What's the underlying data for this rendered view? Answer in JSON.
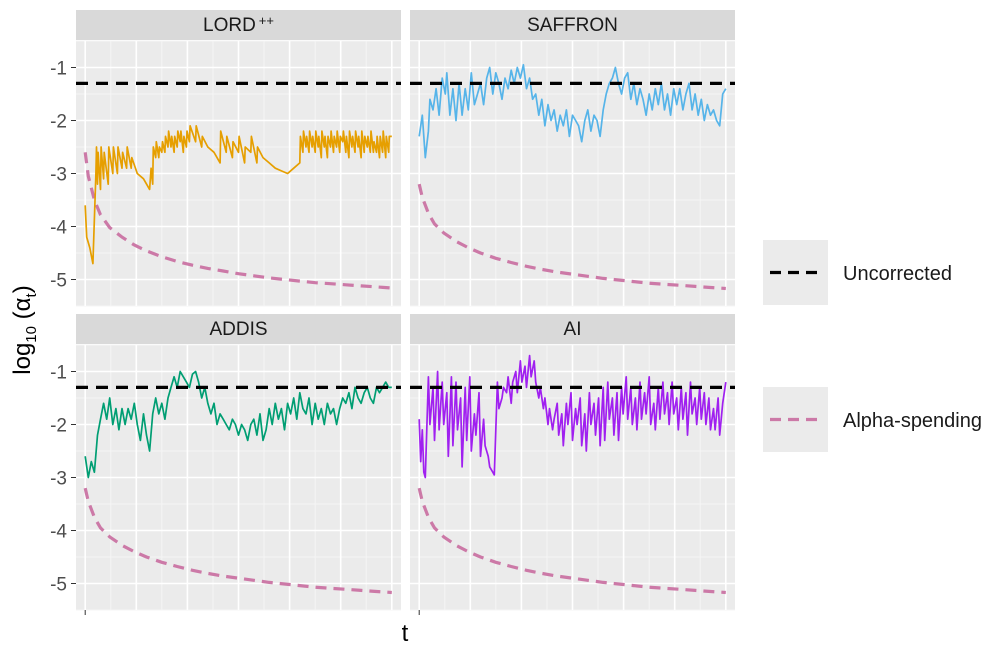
{
  "chart_data": {
    "type": "line",
    "xlabel": "t",
    "ylabel": "log10 (αt)",
    "ylabel_parts": {
      "base": "log",
      "sub": "10",
      "paren_open": " (α",
      "alpha_sub": "t",
      "paren_close": ")"
    },
    "ylim": [
      -5.5,
      -0.5
    ],
    "xlim": [
      -0.03,
      1.03
    ],
    "yticks": [
      {
        "value": -1,
        "label": "-1"
      },
      {
        "value": -2,
        "label": "-2"
      },
      {
        "value": -3,
        "label": "-3"
      },
      {
        "value": -4,
        "label": "-4"
      },
      {
        "value": -5,
        "label": "-5"
      }
    ],
    "grid": true,
    "legend_position": "right",
    "legend": [
      {
        "label": "Uncorrected",
        "color": "#000000",
        "style": "dashed"
      },
      {
        "label": "Alpha-spending",
        "color": "#CC79A7",
        "style": "dashed"
      }
    ],
    "reference_lines": [
      {
        "name": "Uncorrected",
        "y": -1.3,
        "color": "#000000"
      }
    ],
    "alpha_spending": {
      "color": "#CC79A7",
      "x": [
        0.0,
        0.01,
        0.03,
        0.05,
        0.08,
        0.12,
        0.16,
        0.2,
        0.25,
        0.3,
        0.35,
        0.4,
        0.45,
        0.5,
        0.55,
        0.6,
        0.65,
        0.7,
        0.75,
        0.8,
        0.85,
        0.9,
        0.95,
        1.0
      ],
      "y_by_panel": [
        [
          -2.6,
          -3.05,
          -3.5,
          -3.78,
          -4.02,
          -4.2,
          -4.35,
          -4.46,
          -4.57,
          -4.66,
          -4.73,
          -4.79,
          -4.84,
          -4.89,
          -4.93,
          -4.97,
          -5.0,
          -5.03,
          -5.06,
          -5.08,
          -5.1,
          -5.12,
          -5.14,
          -5.16
        ],
        [
          -3.2,
          -3.45,
          -3.75,
          -3.95,
          -4.12,
          -4.28,
          -4.4,
          -4.5,
          -4.6,
          -4.68,
          -4.75,
          -4.81,
          -4.86,
          -4.9,
          -4.94,
          -4.98,
          -5.01,
          -5.04,
          -5.07,
          -5.09,
          -5.11,
          -5.13,
          -5.15,
          -5.17
        ],
        [
          -3.2,
          -3.45,
          -3.75,
          -3.95,
          -4.12,
          -4.28,
          -4.4,
          -4.5,
          -4.6,
          -4.68,
          -4.75,
          -4.81,
          -4.86,
          -4.9,
          -4.94,
          -4.98,
          -5.01,
          -5.04,
          -5.07,
          -5.09,
          -5.11,
          -5.13,
          -5.15,
          -5.17
        ],
        [
          -3.2,
          -3.45,
          -3.75,
          -3.95,
          -4.12,
          -4.28,
          -4.4,
          -4.5,
          -4.6,
          -4.68,
          -4.75,
          -4.81,
          -4.86,
          -4.9,
          -4.94,
          -4.98,
          -5.01,
          -5.04,
          -5.07,
          -5.09,
          -5.11,
          -5.13,
          -5.15,
          -5.17
        ]
      ]
    },
    "panels": [
      {
        "title": "LORD",
        "title_superscript": "++",
        "color": "#E69F00",
        "x": [
          0.0,
          0.005,
          0.015,
          0.025,
          0.035,
          0.037,
          0.04,
          0.042,
          0.05,
          0.052,
          0.06,
          0.062,
          0.075,
          0.077,
          0.09,
          0.092,
          0.105,
          0.107,
          0.12,
          0.122,
          0.135,
          0.137,
          0.15,
          0.152,
          0.17,
          0.19,
          0.21,
          0.215,
          0.22,
          0.222,
          0.23,
          0.232,
          0.24,
          0.242,
          0.25,
          0.252,
          0.26,
          0.262,
          0.27,
          0.272,
          0.28,
          0.282,
          0.29,
          0.292,
          0.3,
          0.302,
          0.31,
          0.312,
          0.32,
          0.322,
          0.33,
          0.332,
          0.34,
          0.342,
          0.36,
          0.362,
          0.38,
          0.382,
          0.4,
          0.42,
          0.44,
          0.442,
          0.46,
          0.462,
          0.48,
          0.482,
          0.5,
          0.502,
          0.52,
          0.522,
          0.54,
          0.542,
          0.56,
          0.562,
          0.58,
          0.6,
          0.62,
          0.64,
          0.66,
          0.68,
          0.7,
          0.702,
          0.71,
          0.712,
          0.72,
          0.722,
          0.73,
          0.732,
          0.74,
          0.742,
          0.75,
          0.752,
          0.76,
          0.762,
          0.77,
          0.772,
          0.78,
          0.782,
          0.79,
          0.792,
          0.8,
          0.802,
          0.81,
          0.812,
          0.82,
          0.822,
          0.83,
          0.832,
          0.84,
          0.842,
          0.85,
          0.852,
          0.86,
          0.862,
          0.87,
          0.872,
          0.88,
          0.882,
          0.89,
          0.892,
          0.9,
          0.902,
          0.91,
          0.912,
          0.92,
          0.922,
          0.93,
          0.932,
          0.94,
          0.942,
          0.95,
          0.952,
          0.96,
          0.962,
          0.97,
          0.972,
          0.98,
          0.982,
          0.99,
          0.992,
          1.0
        ],
        "y": [
          -3.6,
          -4.2,
          -4.4,
          -4.7,
          -3.0,
          -2.5,
          -3.2,
          -2.6,
          -3.3,
          -2.5,
          -3.1,
          -2.6,
          -3.2,
          -2.5,
          -3.0,
          -2.5,
          -3.0,
          -2.5,
          -2.9,
          -2.6,
          -2.9,
          -2.5,
          -2.9,
          -2.7,
          -3.0,
          -3.1,
          -3.3,
          -2.9,
          -3.2,
          -2.5,
          -2.7,
          -2.4,
          -2.7,
          -2.5,
          -2.6,
          -2.4,
          -2.6,
          -2.3,
          -2.5,
          -2.2,
          -2.5,
          -2.3,
          -2.6,
          -2.3,
          -2.5,
          -2.2,
          -2.4,
          -2.2,
          -2.6,
          -2.3,
          -2.5,
          -2.2,
          -2.4,
          -2.1,
          -2.4,
          -2.1,
          -2.5,
          -2.3,
          -2.5,
          -2.6,
          -2.8,
          -2.2,
          -2.6,
          -2.3,
          -2.7,
          -2.4,
          -2.6,
          -2.3,
          -2.8,
          -2.5,
          -2.6,
          -2.3,
          -2.8,
          -2.5,
          -2.7,
          -2.8,
          -2.9,
          -2.95,
          -3.0,
          -2.9,
          -2.8,
          -2.3,
          -2.6,
          -2.2,
          -2.5,
          -2.3,
          -2.6,
          -2.2,
          -2.5,
          -2.3,
          -2.6,
          -2.2,
          -2.5,
          -2.3,
          -2.7,
          -2.2,
          -2.5,
          -2.3,
          -2.7,
          -2.3,
          -2.5,
          -2.2,
          -2.6,
          -2.3,
          -2.5,
          -2.2,
          -2.6,
          -2.3,
          -2.4,
          -2.2,
          -2.6,
          -2.3,
          -2.7,
          -2.2,
          -2.5,
          -2.3,
          -2.6,
          -2.2,
          -2.5,
          -2.3,
          -2.7,
          -2.2,
          -2.6,
          -2.3,
          -2.5,
          -2.3,
          -2.6,
          -2.2,
          -2.6,
          -2.4,
          -2.6,
          -2.3,
          -2.7,
          -2.3,
          -2.6,
          -2.2,
          -2.7,
          -2.3,
          -2.6,
          -2.3,
          -2.3
        ]
      },
      {
        "title": "SAFFRON",
        "color": "#56B4E9",
        "x": [
          0.0,
          0.01,
          0.02,
          0.03,
          0.035,
          0.045,
          0.055,
          0.065,
          0.075,
          0.085,
          0.09,
          0.1,
          0.11,
          0.12,
          0.13,
          0.14,
          0.15,
          0.16,
          0.17,
          0.18,
          0.19,
          0.2,
          0.21,
          0.22,
          0.23,
          0.24,
          0.25,
          0.26,
          0.27,
          0.28,
          0.29,
          0.3,
          0.31,
          0.32,
          0.33,
          0.34,
          0.35,
          0.36,
          0.37,
          0.38,
          0.39,
          0.4,
          0.41,
          0.42,
          0.43,
          0.44,
          0.45,
          0.46,
          0.47,
          0.48,
          0.49,
          0.5,
          0.51,
          0.52,
          0.53,
          0.54,
          0.55,
          0.56,
          0.57,
          0.58,
          0.59,
          0.6,
          0.61,
          0.62,
          0.63,
          0.64,
          0.65,
          0.66,
          0.67,
          0.68,
          0.69,
          0.7,
          0.71,
          0.72,
          0.73,
          0.74,
          0.75,
          0.76,
          0.77,
          0.78,
          0.79,
          0.8,
          0.81,
          0.82,
          0.83,
          0.84,
          0.85,
          0.86,
          0.87,
          0.88,
          0.89,
          0.9,
          0.91,
          0.92,
          0.93,
          0.94,
          0.95,
          0.96,
          0.97,
          0.98,
          0.99,
          1.0
        ],
        "y": [
          -2.3,
          -1.9,
          -2.7,
          -2.2,
          -1.6,
          -1.8,
          -1.4,
          -1.9,
          -1.2,
          -1.5,
          -1.1,
          -1.9,
          -1.4,
          -2.0,
          -1.3,
          -1.9,
          -1.4,
          -1.8,
          -1.1,
          -1.7,
          -1.5,
          -1.3,
          -1.7,
          -1.2,
          -1.0,
          -1.5,
          -1.1,
          -1.3,
          -1.6,
          -1.2,
          -1.4,
          -1.05,
          -1.3,
          -1.0,
          -1.2,
          -0.95,
          -1.4,
          -1.2,
          -1.6,
          -1.5,
          -1.9,
          -1.6,
          -2.1,
          -1.7,
          -2.0,
          -1.8,
          -2.2,
          -1.9,
          -2.1,
          -1.8,
          -2.3,
          -1.9,
          -2.0,
          -2.1,
          -2.4,
          -2.0,
          -1.8,
          -2.2,
          -1.9,
          -2.0,
          -2.3,
          -1.8,
          -1.5,
          -1.3,
          -1.2,
          -1.0,
          -1.3,
          -1.5,
          -1.2,
          -1.1,
          -1.6,
          -1.3,
          -1.7,
          -1.4,
          -1.6,
          -1.9,
          -1.5,
          -1.8,
          -1.4,
          -1.7,
          -1.3,
          -1.8,
          -1.5,
          -1.9,
          -1.4,
          -1.7,
          -1.4,
          -1.8,
          -1.5,
          -1.3,
          -1.8,
          -1.5,
          -1.9,
          -1.6,
          -2.0,
          -1.7,
          -1.9,
          -1.8,
          -2.0,
          -2.1,
          -1.5,
          -1.4
        ]
      },
      {
        "title": "ADDIS",
        "color": "#009E73",
        "x": [
          0.0,
          0.01,
          0.02,
          0.03,
          0.04,
          0.05,
          0.06,
          0.07,
          0.08,
          0.09,
          0.1,
          0.11,
          0.12,
          0.13,
          0.14,
          0.15,
          0.16,
          0.17,
          0.18,
          0.19,
          0.2,
          0.21,
          0.22,
          0.23,
          0.24,
          0.25,
          0.26,
          0.27,
          0.28,
          0.29,
          0.3,
          0.31,
          0.32,
          0.33,
          0.34,
          0.35,
          0.36,
          0.37,
          0.38,
          0.39,
          0.4,
          0.41,
          0.42,
          0.43,
          0.44,
          0.45,
          0.46,
          0.47,
          0.48,
          0.49,
          0.5,
          0.51,
          0.52,
          0.53,
          0.54,
          0.55,
          0.56,
          0.57,
          0.58,
          0.59,
          0.6,
          0.61,
          0.62,
          0.63,
          0.64,
          0.65,
          0.66,
          0.67,
          0.68,
          0.69,
          0.7,
          0.71,
          0.72,
          0.73,
          0.74,
          0.75,
          0.76,
          0.77,
          0.78,
          0.79,
          0.8,
          0.81,
          0.82,
          0.83,
          0.84,
          0.85,
          0.86,
          0.87,
          0.88,
          0.89,
          0.9,
          0.91,
          0.92,
          0.93,
          0.94,
          0.95,
          0.96,
          0.97,
          0.98,
          0.99,
          1.0
        ],
        "y": [
          -2.6,
          -3.0,
          -2.7,
          -2.9,
          -2.2,
          -1.9,
          -1.6,
          -1.9,
          -1.5,
          -2.0,
          -1.7,
          -2.1,
          -1.7,
          -2.0,
          -1.7,
          -1.9,
          -1.6,
          -2.0,
          -2.3,
          -1.8,
          -2.2,
          -2.5,
          -1.8,
          -1.5,
          -1.8,
          -1.6,
          -1.9,
          -1.5,
          -1.3,
          -1.1,
          -1.3,
          -1.0,
          -1.1,
          -1.2,
          -1.3,
          -1.05,
          -1.0,
          -1.2,
          -1.5,
          -1.3,
          -1.6,
          -1.8,
          -1.6,
          -2.0,
          -1.8,
          -1.9,
          -2.0,
          -2.1,
          -1.9,
          -2.0,
          -2.2,
          -2.0,
          -2.1,
          -2.3,
          -2.0,
          -1.9,
          -2.2,
          -1.8,
          -2.3,
          -2.1,
          -1.7,
          -2.0,
          -1.6,
          -1.9,
          -1.7,
          -2.1,
          -1.6,
          -1.8,
          -1.5,
          -1.9,
          -1.4,
          -1.7,
          -1.8,
          -1.5,
          -2.0,
          -1.6,
          -1.9,
          -1.7,
          -2.0,
          -1.6,
          -1.8,
          -1.7,
          -2.0,
          -1.7,
          -1.5,
          -1.6,
          -1.4,
          -1.7,
          -1.3,
          -1.5,
          -1.6,
          -1.4,
          -1.3,
          -1.5,
          -1.6,
          -1.3,
          -1.4,
          -1.3,
          -1.2,
          -1.3,
          -1.3
        ]
      },
      {
        "title": "AI",
        "color": "#A020F0",
        "x": [
          0.0,
          0.005,
          0.01,
          0.015,
          0.02,
          0.03,
          0.035,
          0.045,
          0.05,
          0.06,
          0.065,
          0.075,
          0.08,
          0.09,
          0.095,
          0.105,
          0.11,
          0.12,
          0.125,
          0.135,
          0.14,
          0.15,
          0.155,
          0.165,
          0.17,
          0.18,
          0.185,
          0.195,
          0.2,
          0.21,
          0.215,
          0.225,
          0.23,
          0.24,
          0.245,
          0.255,
          0.26,
          0.27,
          0.275,
          0.285,
          0.29,
          0.3,
          0.305,
          0.315,
          0.32,
          0.33,
          0.335,
          0.345,
          0.35,
          0.36,
          0.365,
          0.375,
          0.38,
          0.39,
          0.395,
          0.405,
          0.41,
          0.42,
          0.425,
          0.435,
          0.44,
          0.45,
          0.455,
          0.465,
          0.47,
          0.48,
          0.485,
          0.495,
          0.5,
          0.51,
          0.515,
          0.525,
          0.53,
          0.54,
          0.545,
          0.555,
          0.56,
          0.57,
          0.575,
          0.585,
          0.59,
          0.6,
          0.605,
          0.615,
          0.62,
          0.63,
          0.635,
          0.645,
          0.65,
          0.66,
          0.665,
          0.675,
          0.68,
          0.69,
          0.695,
          0.705,
          0.71,
          0.72,
          0.725,
          0.735,
          0.74,
          0.75,
          0.755,
          0.765,
          0.77,
          0.78,
          0.785,
          0.795,
          0.8,
          0.81,
          0.815,
          0.825,
          0.83,
          0.84,
          0.845,
          0.855,
          0.86,
          0.87,
          0.875,
          0.885,
          0.89,
          0.9,
          0.905,
          0.915,
          0.92,
          0.93,
          0.935,
          0.945,
          0.95,
          0.96,
          0.965,
          0.975,
          0.98,
          0.99,
          1.0
        ],
        "y": [
          -1.9,
          -2.7,
          -2.1,
          -2.9,
          -3.0,
          -1.1,
          -2.0,
          -1.3,
          -2.3,
          -1.0,
          -2.1,
          -1.2,
          -2.0,
          -1.4,
          -2.6,
          -1.1,
          -2.4,
          -1.2,
          -2.1,
          -1.5,
          -2.8,
          -1.3,
          -2.3,
          -1.1,
          -2.5,
          -1.8,
          -2.2,
          -1.4,
          -2.6,
          -1.9,
          -2.4,
          -2.6,
          -2.8,
          -2.9,
          -2.95,
          -1.2,
          -1.7,
          -1.5,
          -1.3,
          -1.4,
          -1.1,
          -1.6,
          -1.2,
          -1.0,
          -1.4,
          -0.8,
          -1.2,
          -0.9,
          -1.3,
          -0.7,
          -1.1,
          -0.8,
          -1.2,
          -1.5,
          -1.3,
          -1.7,
          -1.5,
          -2.0,
          -1.7,
          -2.1,
          -1.9,
          -1.6,
          -2.2,
          -1.8,
          -2.4,
          -1.6,
          -2.0,
          -1.4,
          -2.3,
          -1.7,
          -2.0,
          -1.5,
          -2.4,
          -1.8,
          -2.5,
          -1.4,
          -2.0,
          -1.6,
          -2.2,
          -1.5,
          -2.4,
          -1.3,
          -2.3,
          -1.2,
          -1.9,
          -1.5,
          -2.2,
          -1.4,
          -2.3,
          -1.3,
          -1.8,
          -1.1,
          -1.9,
          -1.3,
          -2.0,
          -1.5,
          -2.1,
          -1.2,
          -1.9,
          -1.4,
          -1.8,
          -1.1,
          -2.0,
          -1.6,
          -2.1,
          -1.3,
          -1.9,
          -1.2,
          -1.8,
          -1.4,
          -2.0,
          -1.2,
          -1.8,
          -1.5,
          -2.1,
          -1.3,
          -1.9,
          -1.4,
          -2.2,
          -1.2,
          -1.8,
          -1.5,
          -2.0,
          -1.3,
          -1.9,
          -1.4,
          -2.0,
          -1.5,
          -2.1,
          -1.7,
          -2.1,
          -1.5,
          -2.2,
          -1.6,
          -1.2
        ]
      }
    ]
  }
}
